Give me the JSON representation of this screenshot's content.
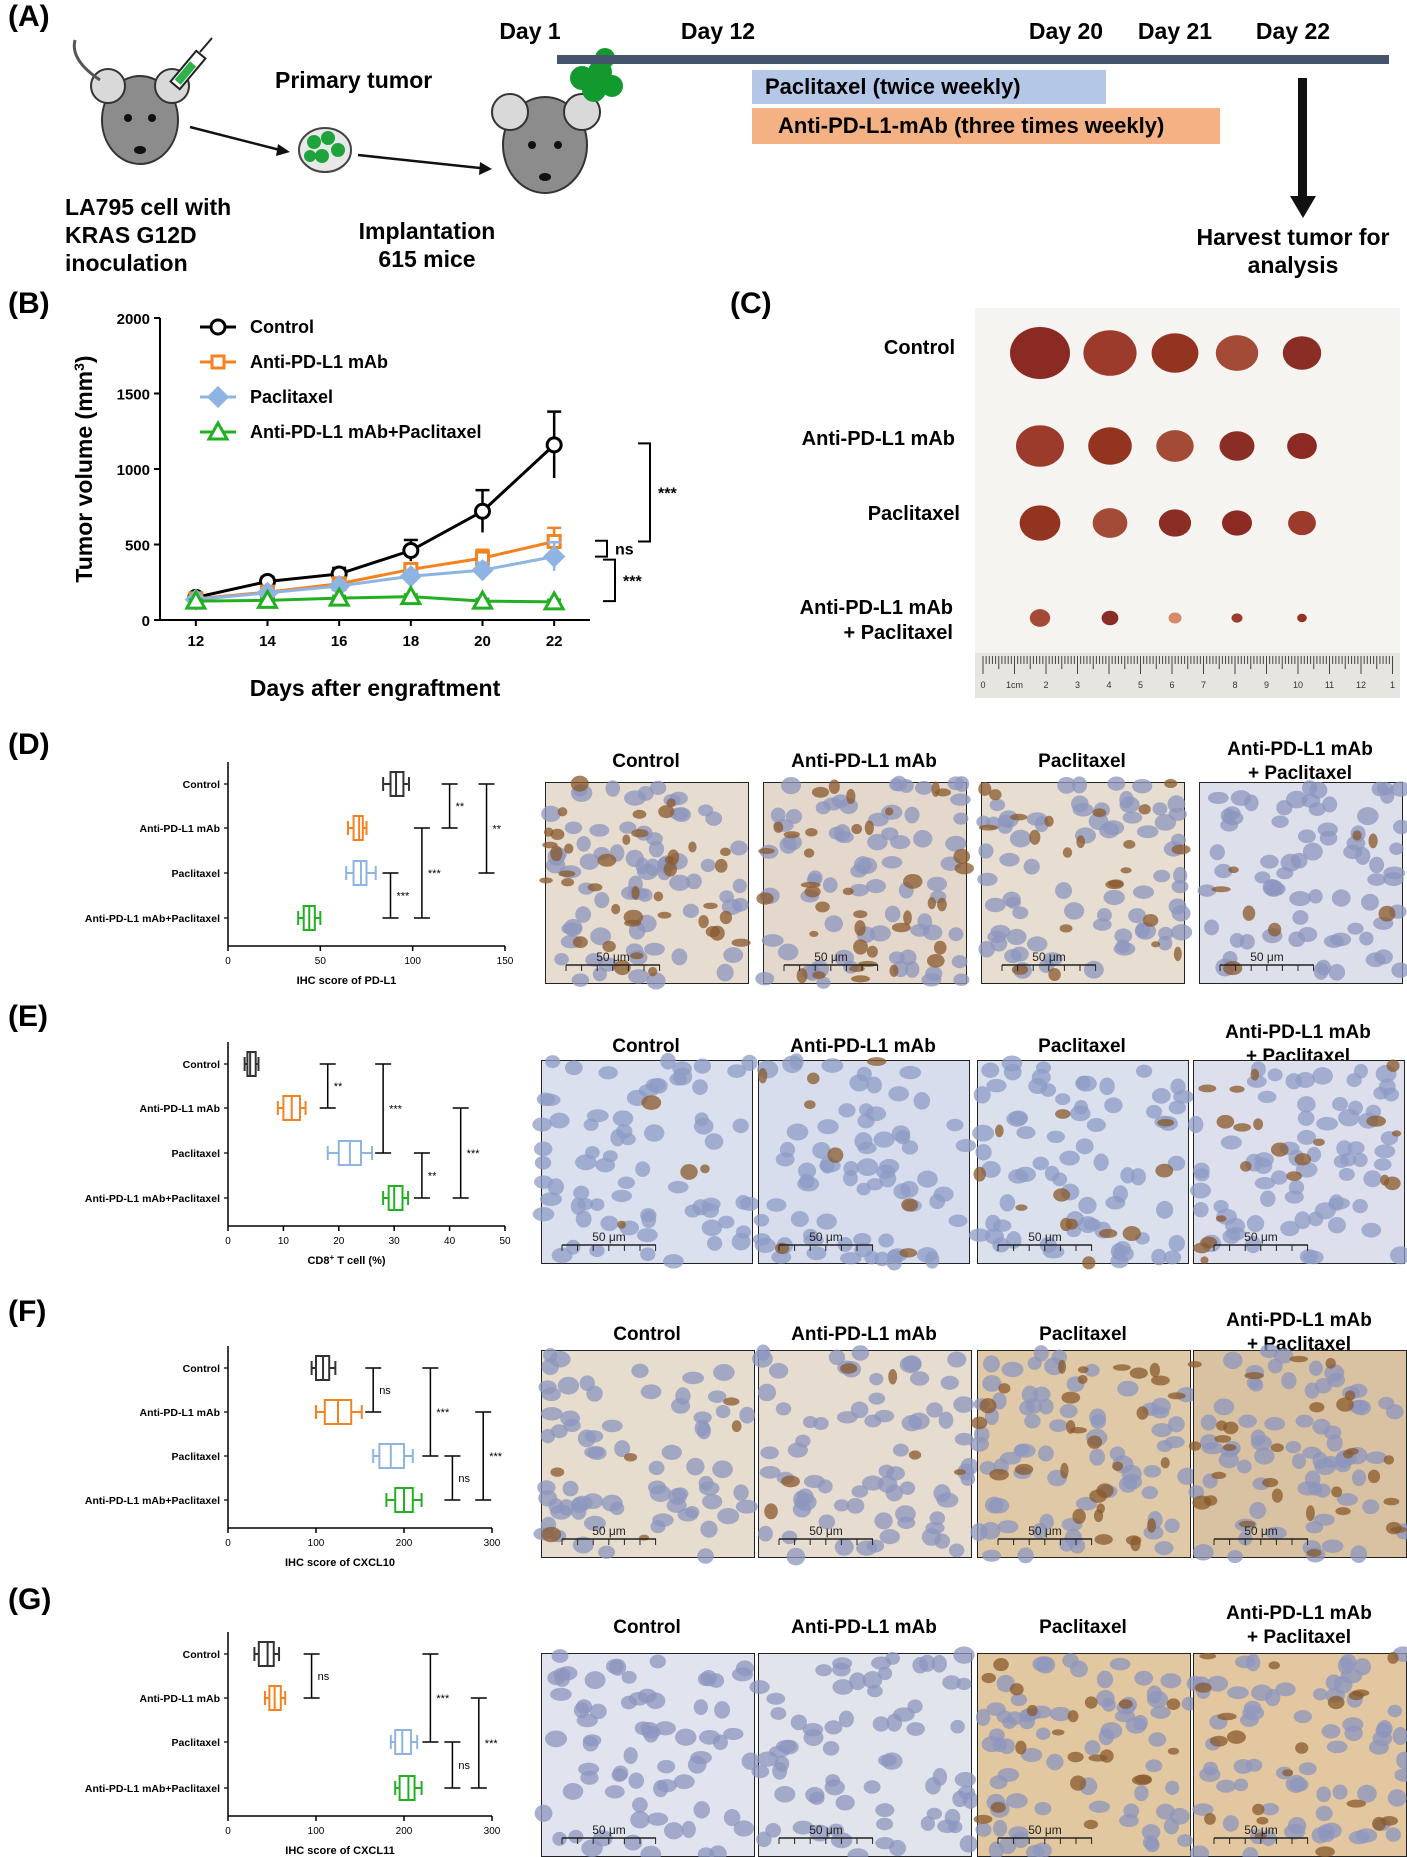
{
  "panels": {
    "A": {
      "label": "(A)",
      "cell_text": [
        "LA795 cell with",
        "KRAS G12D",
        "inoculation"
      ],
      "primary_tumor": "Primary tumor",
      "implantation": [
        "Implantation",
        "615 mice"
      ],
      "timeline_days": [
        "Day 1",
        "Day 12",
        "Day 20",
        "Day 21",
        "Day 22"
      ],
      "paclitaxel_bar": "Paclitaxel (twice weekly)",
      "pdl1_bar": "Anti-PD-L1-mAb (three times weekly)",
      "harvest": [
        "Harvest tumor for",
        "analysis"
      ],
      "colors": {
        "timeline": "#44546a",
        "paclitaxel_bar": "#b4c7e7",
        "pdl1_bar": "#f4b183"
      }
    },
    "B": {
      "label": "(B)"
    },
    "C": {
      "label": "(C)",
      "rows": [
        "Control",
        "Anti-PD-L1 mAb",
        "Paclitaxel",
        "Anti-PD-L1 mAb",
        "+ Paclitaxel"
      ],
      "ruler_numbers": [
        "0",
        "1cm",
        "2",
        "3",
        "4",
        "5",
        "6",
        "7",
        "8",
        "9",
        "10",
        "11",
        "12",
        "1"
      ]
    },
    "D": {
      "label": "(D)"
    },
    "E": {
      "label": "(E)"
    },
    "F": {
      "label": "(F)"
    },
    "G": {
      "label": "(G)"
    }
  },
  "micrograph_headers": [
    "Control",
    "Anti-PD-L1 mAb",
    "Paclitaxel",
    "Anti-PD-L1 mAb",
    "+ Paclitaxel"
  ],
  "scale_bar": "50 μm",
  "chart_data": [
    {
      "id": "B",
      "type": "line",
      "xlabel": "Days after engraftment",
      "ylabel": "Tumor volume (mm",
      "ylabel_sup": "3",
      "ylabel_end": ")",
      "x": [
        12,
        14,
        16,
        18,
        20,
        22
      ],
      "xlim": [
        11,
        23
      ],
      "ylim": [
        0,
        2000
      ],
      "yticks": [
        0,
        500,
        1000,
        1500,
        2000
      ],
      "series": [
        {
          "name": "Control",
          "color": "#000000",
          "marker": "circle",
          "values": [
            150,
            255,
            305,
            460,
            720,
            1160
          ],
          "err": [
            20,
            30,
            40,
            70,
            140,
            220
          ]
        },
        {
          "name": "Anti-PD-L1 mAb",
          "color": "#f58220",
          "marker": "square",
          "values": [
            140,
            185,
            240,
            335,
            410,
            520
          ],
          "err": [
            15,
            20,
            25,
            40,
            55,
            90
          ]
        },
        {
          "name": "Paclitaxel",
          "color": "#8db4e2",
          "marker": "diamond",
          "values": [
            135,
            180,
            225,
            290,
            330,
            420
          ],
          "err": [
            15,
            20,
            25,
            35,
            50,
            95
          ]
        },
        {
          "name": "Anti-PD-L1 mAb+Paclitaxel",
          "color": "#22b022",
          "marker": "triangle",
          "values": [
            125,
            130,
            145,
            155,
            125,
            120
          ],
          "err": [
            10,
            10,
            15,
            15,
            15,
            15
          ]
        }
      ],
      "significance": [
        "***",
        "ns",
        "***"
      ]
    },
    {
      "id": "D",
      "type": "box",
      "categories": [
        "Control",
        "Anti-PD-L1 mAb",
        "Paclitaxel",
        "Anti-PD-L1 mAb+Paclitaxel"
      ],
      "colors": [
        "#333333",
        "#f58220",
        "#8db4e2",
        "#22b022"
      ],
      "xlabel": "IHC score of PD-L1",
      "xlim": [
        0,
        150
      ],
      "xticks": [
        0,
        50,
        100,
        150
      ],
      "boxes": [
        [
          84,
          88,
          91,
          95,
          98
        ],
        [
          65,
          68,
          71,
          73,
          75
        ],
        [
          64,
          68,
          72,
          75,
          80
        ],
        [
          38,
          41,
          44,
          47,
          50
        ]
      ],
      "brackets": [
        {
          "x": 120,
          "from": 0,
          "to": 1,
          "text": "**"
        },
        {
          "x": 140,
          "from": 0,
          "to": 2,
          "text": "**"
        },
        {
          "x": 105,
          "from": 1,
          "to": 3,
          "text": "***"
        },
        {
          "x": 88,
          "from": 2,
          "to": 3,
          "text": "***"
        }
      ]
    },
    {
      "id": "E",
      "type": "box",
      "categories": [
        "Control",
        "Anti-PD-L1 mAb",
        "Paclitaxel",
        "Anti-PD-L1 mAb+Paclitaxel"
      ],
      "colors": [
        "#333333",
        "#f58220",
        "#8db4e2",
        "#22b022"
      ],
      "xlabel": "CD8",
      "xlabel_sup": "+",
      "xlabel_end": " T cell (%)",
      "xlim": [
        0,
        50
      ],
      "xticks": [
        0,
        10,
        20,
        30,
        40,
        50
      ],
      "boxes": [
        [
          3,
          3.5,
          4,
          5,
          5.5
        ],
        [
          9,
          10,
          11.5,
          13,
          14
        ],
        [
          18,
          20,
          22,
          24,
          26
        ],
        [
          28,
          29,
          30,
          31.5,
          32.5
        ]
      ],
      "brackets": [
        {
          "x": 18,
          "from": 0,
          "to": 1,
          "text": "**"
        },
        {
          "x": 28,
          "from": 0,
          "to": 2,
          "text": "***"
        },
        {
          "x": 42,
          "from": 1,
          "to": 3,
          "text": "***"
        },
        {
          "x": 35,
          "from": 2,
          "to": 3,
          "text": "**"
        }
      ]
    },
    {
      "id": "F",
      "type": "box",
      "categories": [
        "Control",
        "Anti-PD-L1 mAb",
        "Paclitaxel",
        "Anti-PD-L1 mAb+Paclitaxel"
      ],
      "colors": [
        "#333333",
        "#f58220",
        "#8db4e2",
        "#22b022"
      ],
      "xlabel": "IHC score of CXCL10",
      "xlim": [
        0,
        300
      ],
      "xticks": [
        0,
        100,
        200,
        300
      ],
      "boxes": [
        [
          95,
          100,
          108,
          115,
          122
        ],
        [
          100,
          110,
          125,
          140,
          152
        ],
        [
          165,
          172,
          185,
          200,
          210
        ],
        [
          180,
          190,
          200,
          210,
          220
        ]
      ],
      "brackets": [
        {
          "x": 165,
          "from": 0,
          "to": 1,
          "text": "ns"
        },
        {
          "x": 230,
          "from": 0,
          "to": 2,
          "text": "***"
        },
        {
          "x": 290,
          "from": 1,
          "to": 3,
          "text": "***"
        },
        {
          "x": 255,
          "from": 2,
          "to": 3,
          "text": "ns"
        }
      ]
    },
    {
      "id": "G",
      "type": "box",
      "categories": [
        "Control",
        "Anti-PD-L1 mAb",
        "Paclitaxel",
        "Anti-PD-L1 mAb+Paclitaxel"
      ],
      "colors": [
        "#333333",
        "#f58220",
        "#8db4e2",
        "#22b022"
      ],
      "xlabel": "IHC score of CXCL11",
      "xlim": [
        0,
        300
      ],
      "xticks": [
        0,
        100,
        200,
        300
      ],
      "boxes": [
        [
          30,
          35,
          45,
          52,
          58
        ],
        [
          42,
          47,
          53,
          60,
          65
        ],
        [
          185,
          190,
          198,
          208,
          215
        ],
        [
          190,
          195,
          205,
          212,
          220
        ]
      ],
      "brackets": [
        {
          "x": 95,
          "from": 0,
          "to": 1,
          "text": "ns"
        },
        {
          "x": 230,
          "from": 0,
          "to": 2,
          "text": "***"
        },
        {
          "x": 285,
          "from": 1,
          "to": 3,
          "text": "***"
        },
        {
          "x": 255,
          "from": 2,
          "to": 3,
          "text": "ns"
        }
      ]
    }
  ]
}
